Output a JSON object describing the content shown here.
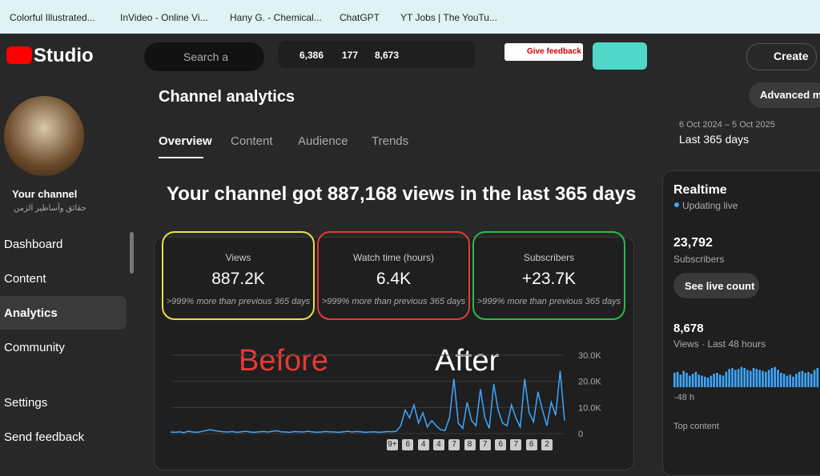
{
  "bookmarks": [
    "Colorful Illustrated...",
    "InVideo - Online Vi...",
    "Hany G. - Chemical...",
    "ChatGPT",
    "YT Jobs | The YouTu..."
  ],
  "header": {
    "logo": "Studio",
    "search": "Search a",
    "stats": [
      "6,386",
      "177",
      "8,673"
    ],
    "give_feedback": "Give feedback",
    "create": "Create"
  },
  "sidebar": {
    "channel": "Your channel",
    "channel_name": "حقائق وأساطير الزمن",
    "nav": [
      "Dashboard",
      "Content",
      "Analytics",
      "Community"
    ],
    "bottom": [
      "Settings",
      "Send feedback"
    ]
  },
  "main": {
    "title": "Channel analytics",
    "tabs": [
      "Overview",
      "Content",
      "Audience",
      "Trends"
    ],
    "advanced": "Advanced mo",
    "date_range": "6 Oct 2024 – 5 Oct 2025",
    "period": "Last 365 days",
    "headline": "Your channel got 887,168 views in the last 365 days",
    "cards": [
      {
        "label": "Views",
        "value": "887.2K",
        "note": ">999% more than previous 365 days"
      },
      {
        "label": "Watch time (hours)",
        "value": "6.4K",
        "note": ">999% more than previous 365 days"
      },
      {
        "label": "Subscribers",
        "value": "+23.7K",
        "note": ">999% more than previous 365 days"
      }
    ],
    "annotations": [
      "Before",
      "After"
    ],
    "video_markers": [
      "9+",
      "6",
      "4",
      "4",
      "7",
      "8",
      "7",
      "6",
      "7",
      "6",
      "2"
    ]
  },
  "realtime": {
    "title": "Realtime",
    "status": "Updating live",
    "subscribers": "23,792",
    "subscribers_label": "Subscribers",
    "button": "See live count",
    "views": "8,678",
    "views_label": "Views · Last 48 hours",
    "start_label": "-48 h",
    "top_content": "Top content"
  },
  "chart_data": [
    {
      "type": "line",
      "color": "#3ea6ff",
      "ylim": [
        0,
        33000
      ],
      "yticks": [
        {
          "value": 30000,
          "label": "30.0K"
        },
        {
          "value": 20000,
          "label": "20.0K"
        },
        {
          "value": 10000,
          "label": "10.0K"
        },
        0
      ],
      "values": [
        600,
        500,
        700,
        400,
        900,
        600,
        500,
        800,
        1200,
        1500,
        1100,
        900,
        700,
        600,
        800,
        500,
        700,
        900,
        600,
        500,
        700,
        800,
        600,
        900,
        1100,
        700,
        600,
        500,
        800,
        700,
        600,
        900,
        700,
        500,
        600,
        800,
        700,
        600,
        500,
        700,
        900,
        600,
        800,
        700,
        500,
        600,
        700,
        500,
        600,
        800,
        700,
        900,
        3000,
        9000,
        6000,
        11000,
        4000,
        8000,
        2500,
        5000,
        3000,
        1500,
        1200,
        6000,
        21000,
        4000,
        2000,
        12000,
        5000,
        3000,
        17000,
        6000,
        2000,
        19000,
        9000,
        4000,
        3000,
        11000,
        6000,
        2500,
        21000,
        8000,
        4500,
        16000,
        9000,
        3000,
        12000,
        7000,
        24000,
        5000
      ]
    },
    {
      "type": "bar",
      "color": "#3ea6ff",
      "values": [
        150,
        160,
        130,
        170,
        150,
        120,
        140,
        160,
        130,
        120,
        110,
        100,
        120,
        140,
        150,
        130,
        120,
        160,
        190,
        200,
        180,
        190,
        210,
        200,
        180,
        170,
        200,
        190,
        180,
        170,
        160,
        180,
        200,
        210,
        180,
        150,
        140,
        120,
        130,
        110,
        140,
        160,
        170,
        150,
        160,
        140,
        180,
        200
      ]
    }
  ]
}
